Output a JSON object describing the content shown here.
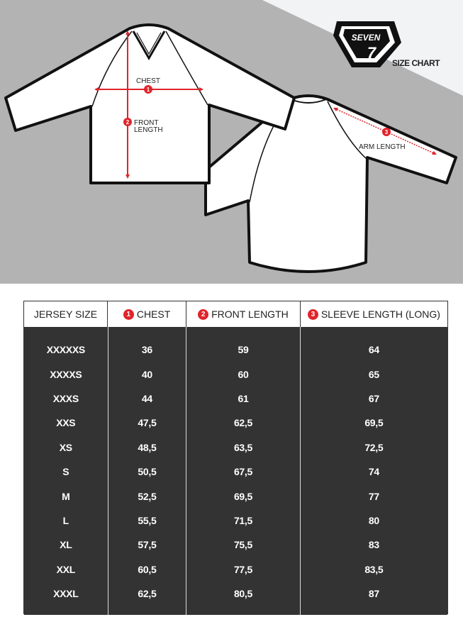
{
  "brand": {
    "logo_text": "SEVEN 7",
    "title": "SIZE CHART"
  },
  "diagram": {
    "chest_label": "CHEST",
    "front_length_label_1": "FRONT",
    "front_length_label_2": "LENGTH",
    "arm_length_label": "ARM LENGTH",
    "badges": [
      "1",
      "2",
      "3"
    ],
    "accent_color": "#e0242b",
    "background_color": "#b3b3b3"
  },
  "table": {
    "headers": [
      {
        "num": "",
        "label": "JERSEY SIZE"
      },
      {
        "num": "1",
        "label": "CHEST"
      },
      {
        "num": "2",
        "label": "FRONT LENGTH"
      },
      {
        "num": "3",
        "label": "SLEEVE LENGTH (LONG)"
      }
    ],
    "sizes": [
      "XXXXXS",
      "XXXXS",
      "XXXS",
      "XXS",
      "XS",
      "S",
      "M",
      "L",
      "XL",
      "XXL",
      "XXXL"
    ],
    "chest": [
      "36",
      "40",
      "44",
      "47,5",
      "48,5",
      "50,5",
      "52,5",
      "55,5",
      "57,5",
      "60,5",
      "62,5"
    ],
    "front_length": [
      "59",
      "60",
      "61",
      "62,5",
      "63,5",
      "67,5",
      "69,5",
      "71,5",
      "75,5",
      "77,5",
      "80,5"
    ],
    "sleeve_length": [
      "64",
      "65",
      "67",
      "69,5",
      "72,5",
      "74",
      "77",
      "80",
      "83",
      "83,5",
      "87"
    ]
  }
}
